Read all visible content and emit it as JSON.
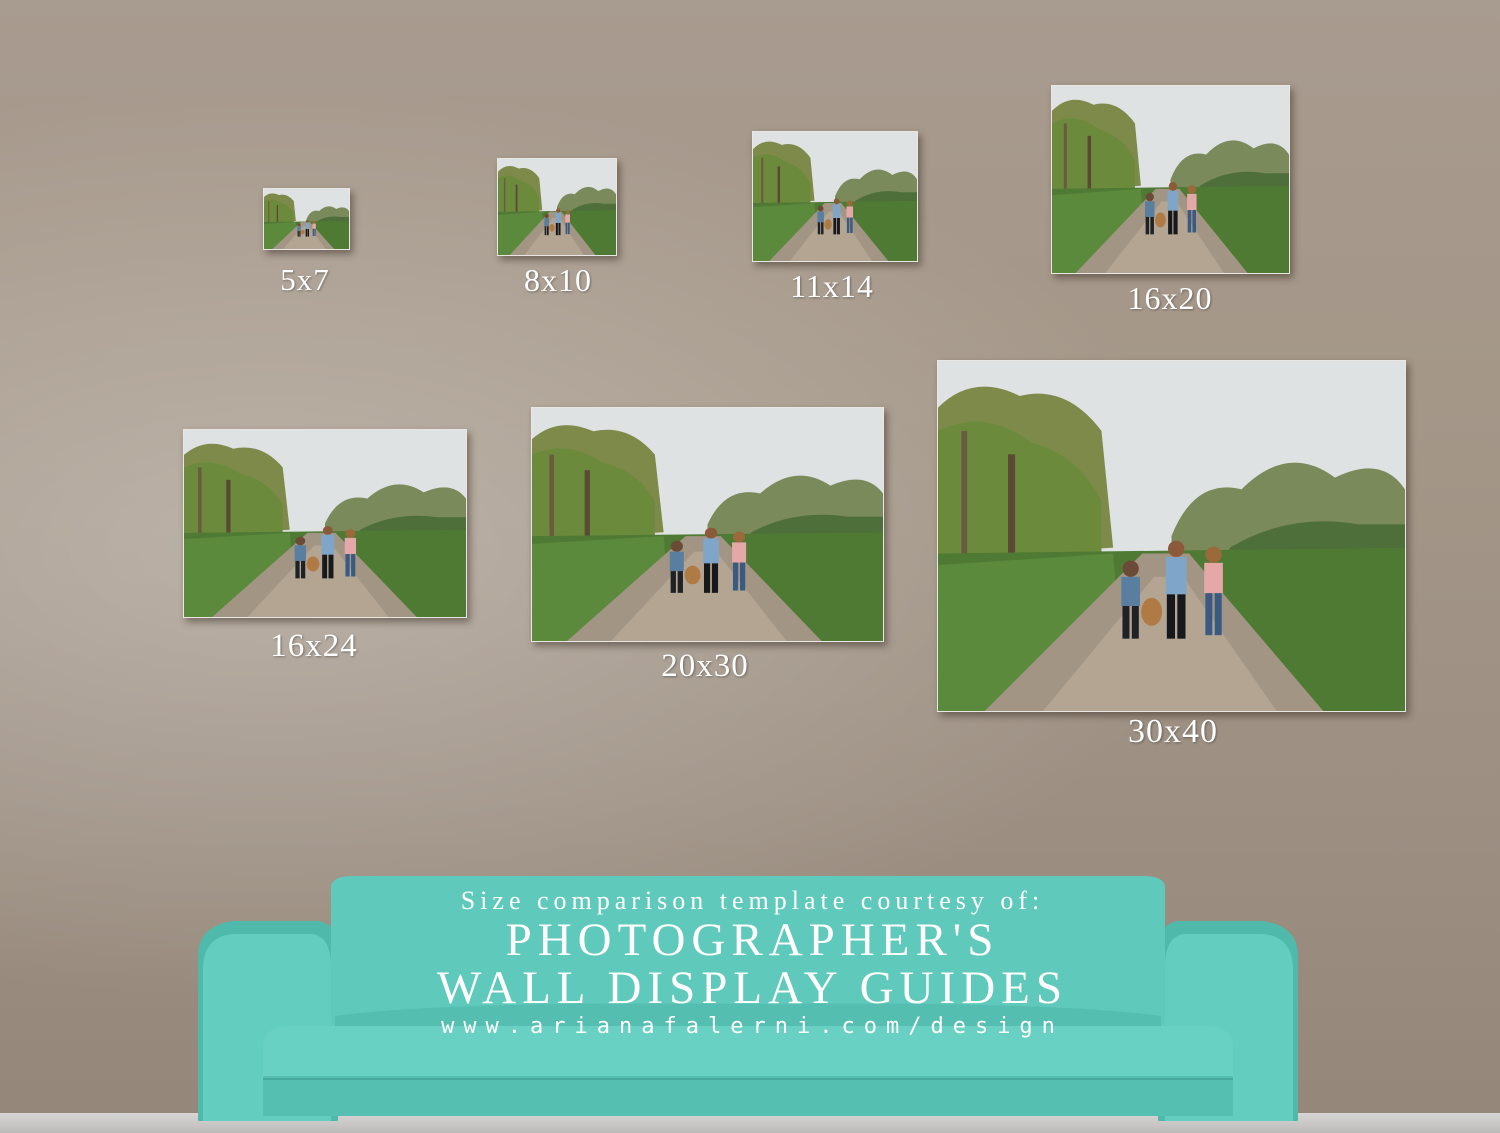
{
  "prints": [
    {
      "label": "5x7"
    },
    {
      "label": "8x10"
    },
    {
      "label": "11x14"
    },
    {
      "label": "16x20"
    },
    {
      "label": "16x24"
    },
    {
      "label": "20x30"
    },
    {
      "label": "30x40"
    }
  ],
  "sofa": {
    "courtesy": "Size comparison template courtesy of:",
    "title_line1": "PHOTOGRAPHER'S",
    "title_line2": "WALL DISPLAY GUIDES",
    "url": "www.arianafalerni.com/design"
  },
  "colors": {
    "sofa": "#5fc9bb",
    "wall": "#a49788"
  }
}
